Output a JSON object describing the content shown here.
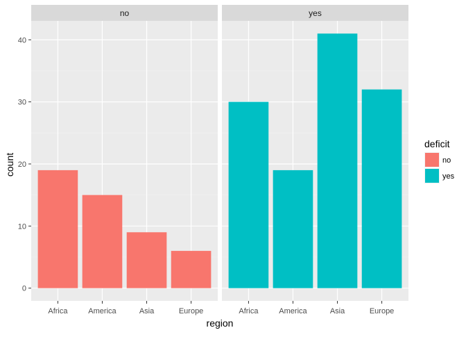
{
  "chart_data": {
    "type": "bar",
    "facet_variable": "deficit",
    "panels": [
      {
        "strip_label": "no",
        "values": [
          19,
          15,
          9,
          6
        ],
        "fill_key": "no"
      },
      {
        "strip_label": "yes",
        "values": [
          30,
          19,
          41,
          32
        ],
        "fill_key": "yes"
      }
    ],
    "categories": [
      "Africa",
      "America",
      "Asia",
      "Europe"
    ],
    "xlabel": "region",
    "ylabel": "count",
    "ylim": [
      -2.05,
      43.05
    ],
    "yticks": [
      0,
      10,
      20,
      30,
      40
    ],
    "grid": true,
    "legend": {
      "title": "deficit",
      "position": "right",
      "entries": [
        {
          "label": "no",
          "color": "#F8766D"
        },
        {
          "label": "yes",
          "color": "#00BFC4"
        }
      ]
    },
    "colors": {
      "no": "#F8766D",
      "yes": "#00BFC4",
      "panel_background": "#EBEBEB",
      "strip_background": "#D9D9D9",
      "grid_major": "#FFFFFF",
      "grid_minor": "#F2F2F2",
      "axis_text": "#4D4D4D",
      "strip_text": "#1A1A1A"
    }
  }
}
